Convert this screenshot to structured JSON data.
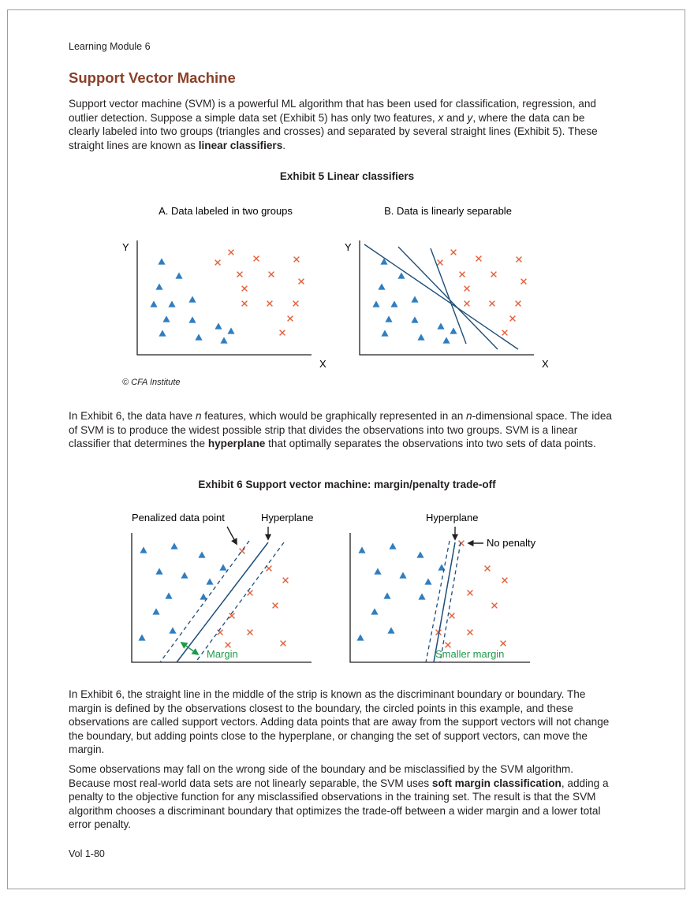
{
  "header": {
    "running_head": "Learning Module 6"
  },
  "section": {
    "title": "Support Vector Machine"
  },
  "paragraphs": {
    "p1": [
      {
        "t": "Support vector machine (SVM) is a powerful ML algorithm that has been used for classification, regression, and outlier detection. Suppose a simple data set (Exhibit 5) has only two features, "
      },
      {
        "t": "x",
        "style": "i"
      },
      {
        "t": " and "
      },
      {
        "t": "y",
        "style": "i"
      },
      {
        "t": ", where the data can be clearly labeled into two groups (triangles and crosses) and separated by several straight lines (Exhibit 5). These straight lines are known as "
      },
      {
        "t": "linear classifiers",
        "style": "b"
      },
      {
        "t": "."
      }
    ],
    "p2": [
      {
        "t": "In Exhibit 6, the data have "
      },
      {
        "t": "n",
        "style": "i"
      },
      {
        "t": " features, which would be graphically represented in an "
      },
      {
        "t": "n",
        "style": "i"
      },
      {
        "t": "-dimensional space. The idea of SVM is to produce the widest possible strip that divides the observations into two groups. SVM is a linear classifier that determines the "
      },
      {
        "t": "hyperplane",
        "style": "b"
      },
      {
        "t": " that optimally separates the observations into two sets of data points."
      }
    ],
    "p3": [
      {
        "t": "In Exhibit 6, the straight line in the middle of the strip is known as the discriminant boundary or boundary. The margin is defined by the observations closest to the boundary, the circled points in this example, and these observations are called support vectors. Adding data points that are away from the support vectors will not change the boundary, but adding points close to the hyperplane, or changing the set of support vectors, can move the margin."
      }
    ],
    "p4": [
      {
        "t": "Some observations may fall on the wrong side of the boundary and be misclassified by the SVM algorithm. Because most real-world data sets are not linearly separable, the SVM uses "
      },
      {
        "t": "soft margin classification",
        "style": "b"
      },
      {
        "t": ", adding a penalty to the objective function for any misclassified observations in the training set. The result is that the SVM algorithm chooses a discriminant boundary that optimizes the trade-off between a wider margin and a lower total error penalty."
      }
    ]
  },
  "exhibit5": {
    "title": "Exhibit 5  Linear classifiers",
    "panel_a": {
      "title": "A. Data labeled in two groups",
      "ylabel": "Y",
      "xlabel": "X"
    },
    "panel_b": {
      "title": "B. Data is linearly separable",
      "ylabel": "Y",
      "xlabel": "X"
    },
    "credit": "© CFA Institute"
  },
  "exhibit6": {
    "title": "Exhibit 6  Support vector machine: margin/penalty trade-off",
    "left": {
      "label_penalized": "Penalized data point",
      "label_hyperplane": "Hyperplane",
      "label_margin": "Margin"
    },
    "right": {
      "label_hyperplane": "Hyperplane",
      "label_no_penalty": "No penalty",
      "label_margin": "Smaller margin"
    }
  },
  "colors": {
    "triangle": "#2f7ec1",
    "cross": "#e2603a",
    "line": "#1d4e79",
    "margin_label": "#1e9a4b",
    "title": "#8a4029"
  },
  "footer": {
    "page_number": "Vol 1-80"
  }
}
